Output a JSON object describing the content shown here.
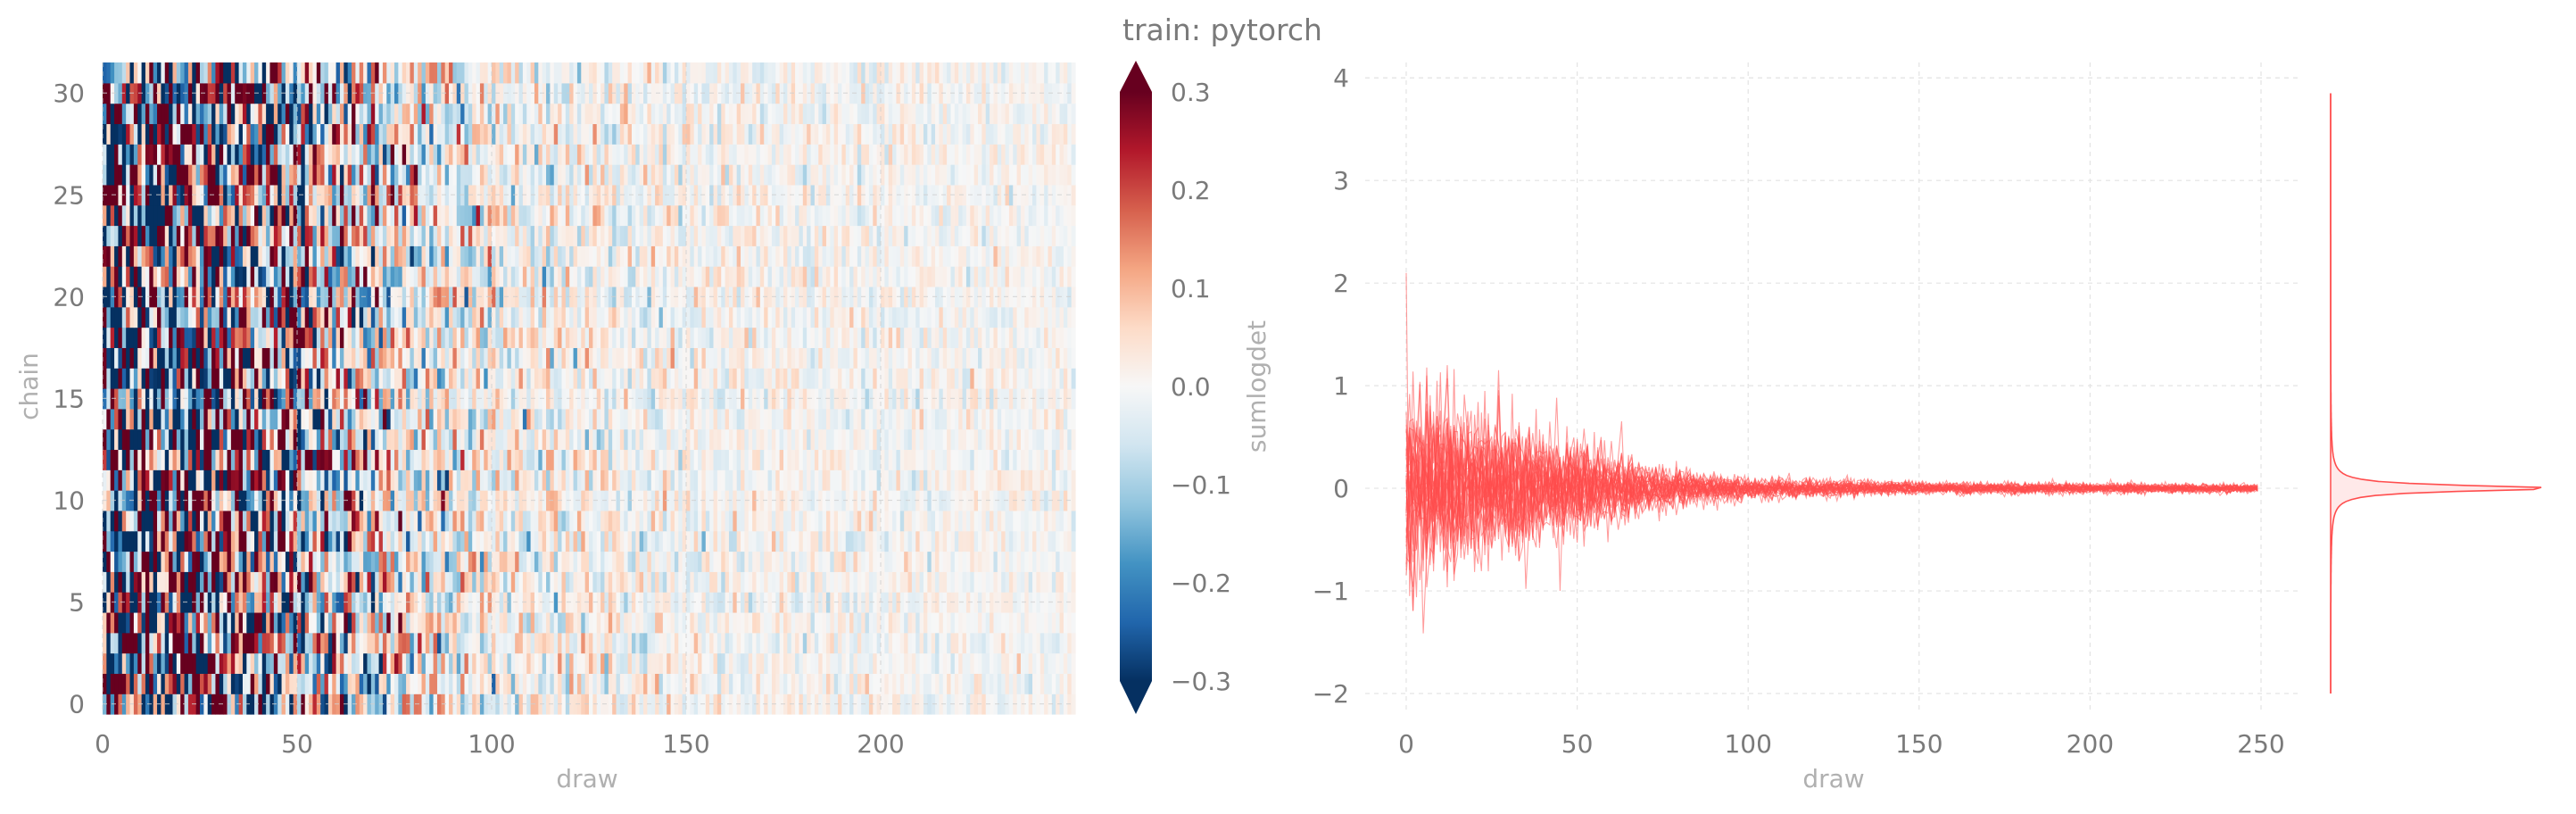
{
  "title": "train: pytorch",
  "chart_data": [
    {
      "type": "heatmap",
      "xlabel": "draw",
      "ylabel": "chain",
      "xlim": [
        0,
        250
      ],
      "ylim": [
        0,
        32
      ],
      "xticks": [
        0,
        50,
        100,
        150,
        200
      ],
      "yticks": [
        0,
        5,
        10,
        15,
        20,
        25,
        30
      ],
      "n_draws": 250,
      "n_chains": 32,
      "colormap": "RdBu_r",
      "colorbar": {
        "label": "sumlogdet",
        "range": [
          -0.3,
          0.3
        ],
        "ticks": [
          "0.3",
          "0.2",
          "0.1",
          "0.0",
          "−0.1",
          "−0.2",
          "−0.3"
        ],
        "extend": "both"
      },
      "amplitude_profile": [
        {
          "draw": 0,
          "std": 0.45
        },
        {
          "draw": 25,
          "std": 0.35
        },
        {
          "draw": 50,
          "std": 0.25
        },
        {
          "draw": 75,
          "std": 0.12
        },
        {
          "draw": 100,
          "std": 0.07
        },
        {
          "draw": 150,
          "std": 0.04
        },
        {
          "draw": 250,
          "std": 0.025
        }
      ],
      "grid": true
    },
    {
      "type": "line",
      "xlabel": "draw",
      "ylabel": "",
      "xlim": [
        -12,
        262
      ],
      "ylim": [
        -2.2,
        4.15
      ],
      "xticks": [
        0,
        50,
        100,
        150,
        200,
        250
      ],
      "yticks": [
        -2,
        -1,
        0,
        1,
        2,
        3,
        4
      ],
      "ytick_labels": [
        "−2",
        "−1",
        "0",
        "1",
        "2",
        "3",
        "4"
      ],
      "n_series": 32,
      "color": "#ff4d4d",
      "mean": 0.0,
      "amplitude_profile": [
        {
          "draw": 0,
          "std": 0.45
        },
        {
          "draw": 25,
          "std": 0.33
        },
        {
          "draw": 50,
          "std": 0.22
        },
        {
          "draw": 75,
          "std": 0.09
        },
        {
          "draw": 100,
          "std": 0.05
        },
        {
          "draw": 150,
          "std": 0.03
        },
        {
          "draw": 250,
          "std": 0.02
        }
      ],
      "extremes": [
        {
          "draw": 0,
          "value": 2.1
        },
        {
          "draw": 1,
          "value": -1.05
        },
        {
          "draw": 12,
          "value": 1.2
        },
        {
          "draw": 35,
          "value": -0.98
        },
        {
          "draw": 45,
          "value": -1.0
        }
      ],
      "density": {
        "range": [
          -2.0,
          3.85
        ],
        "peak": 0.0
      },
      "grid": true
    }
  ]
}
